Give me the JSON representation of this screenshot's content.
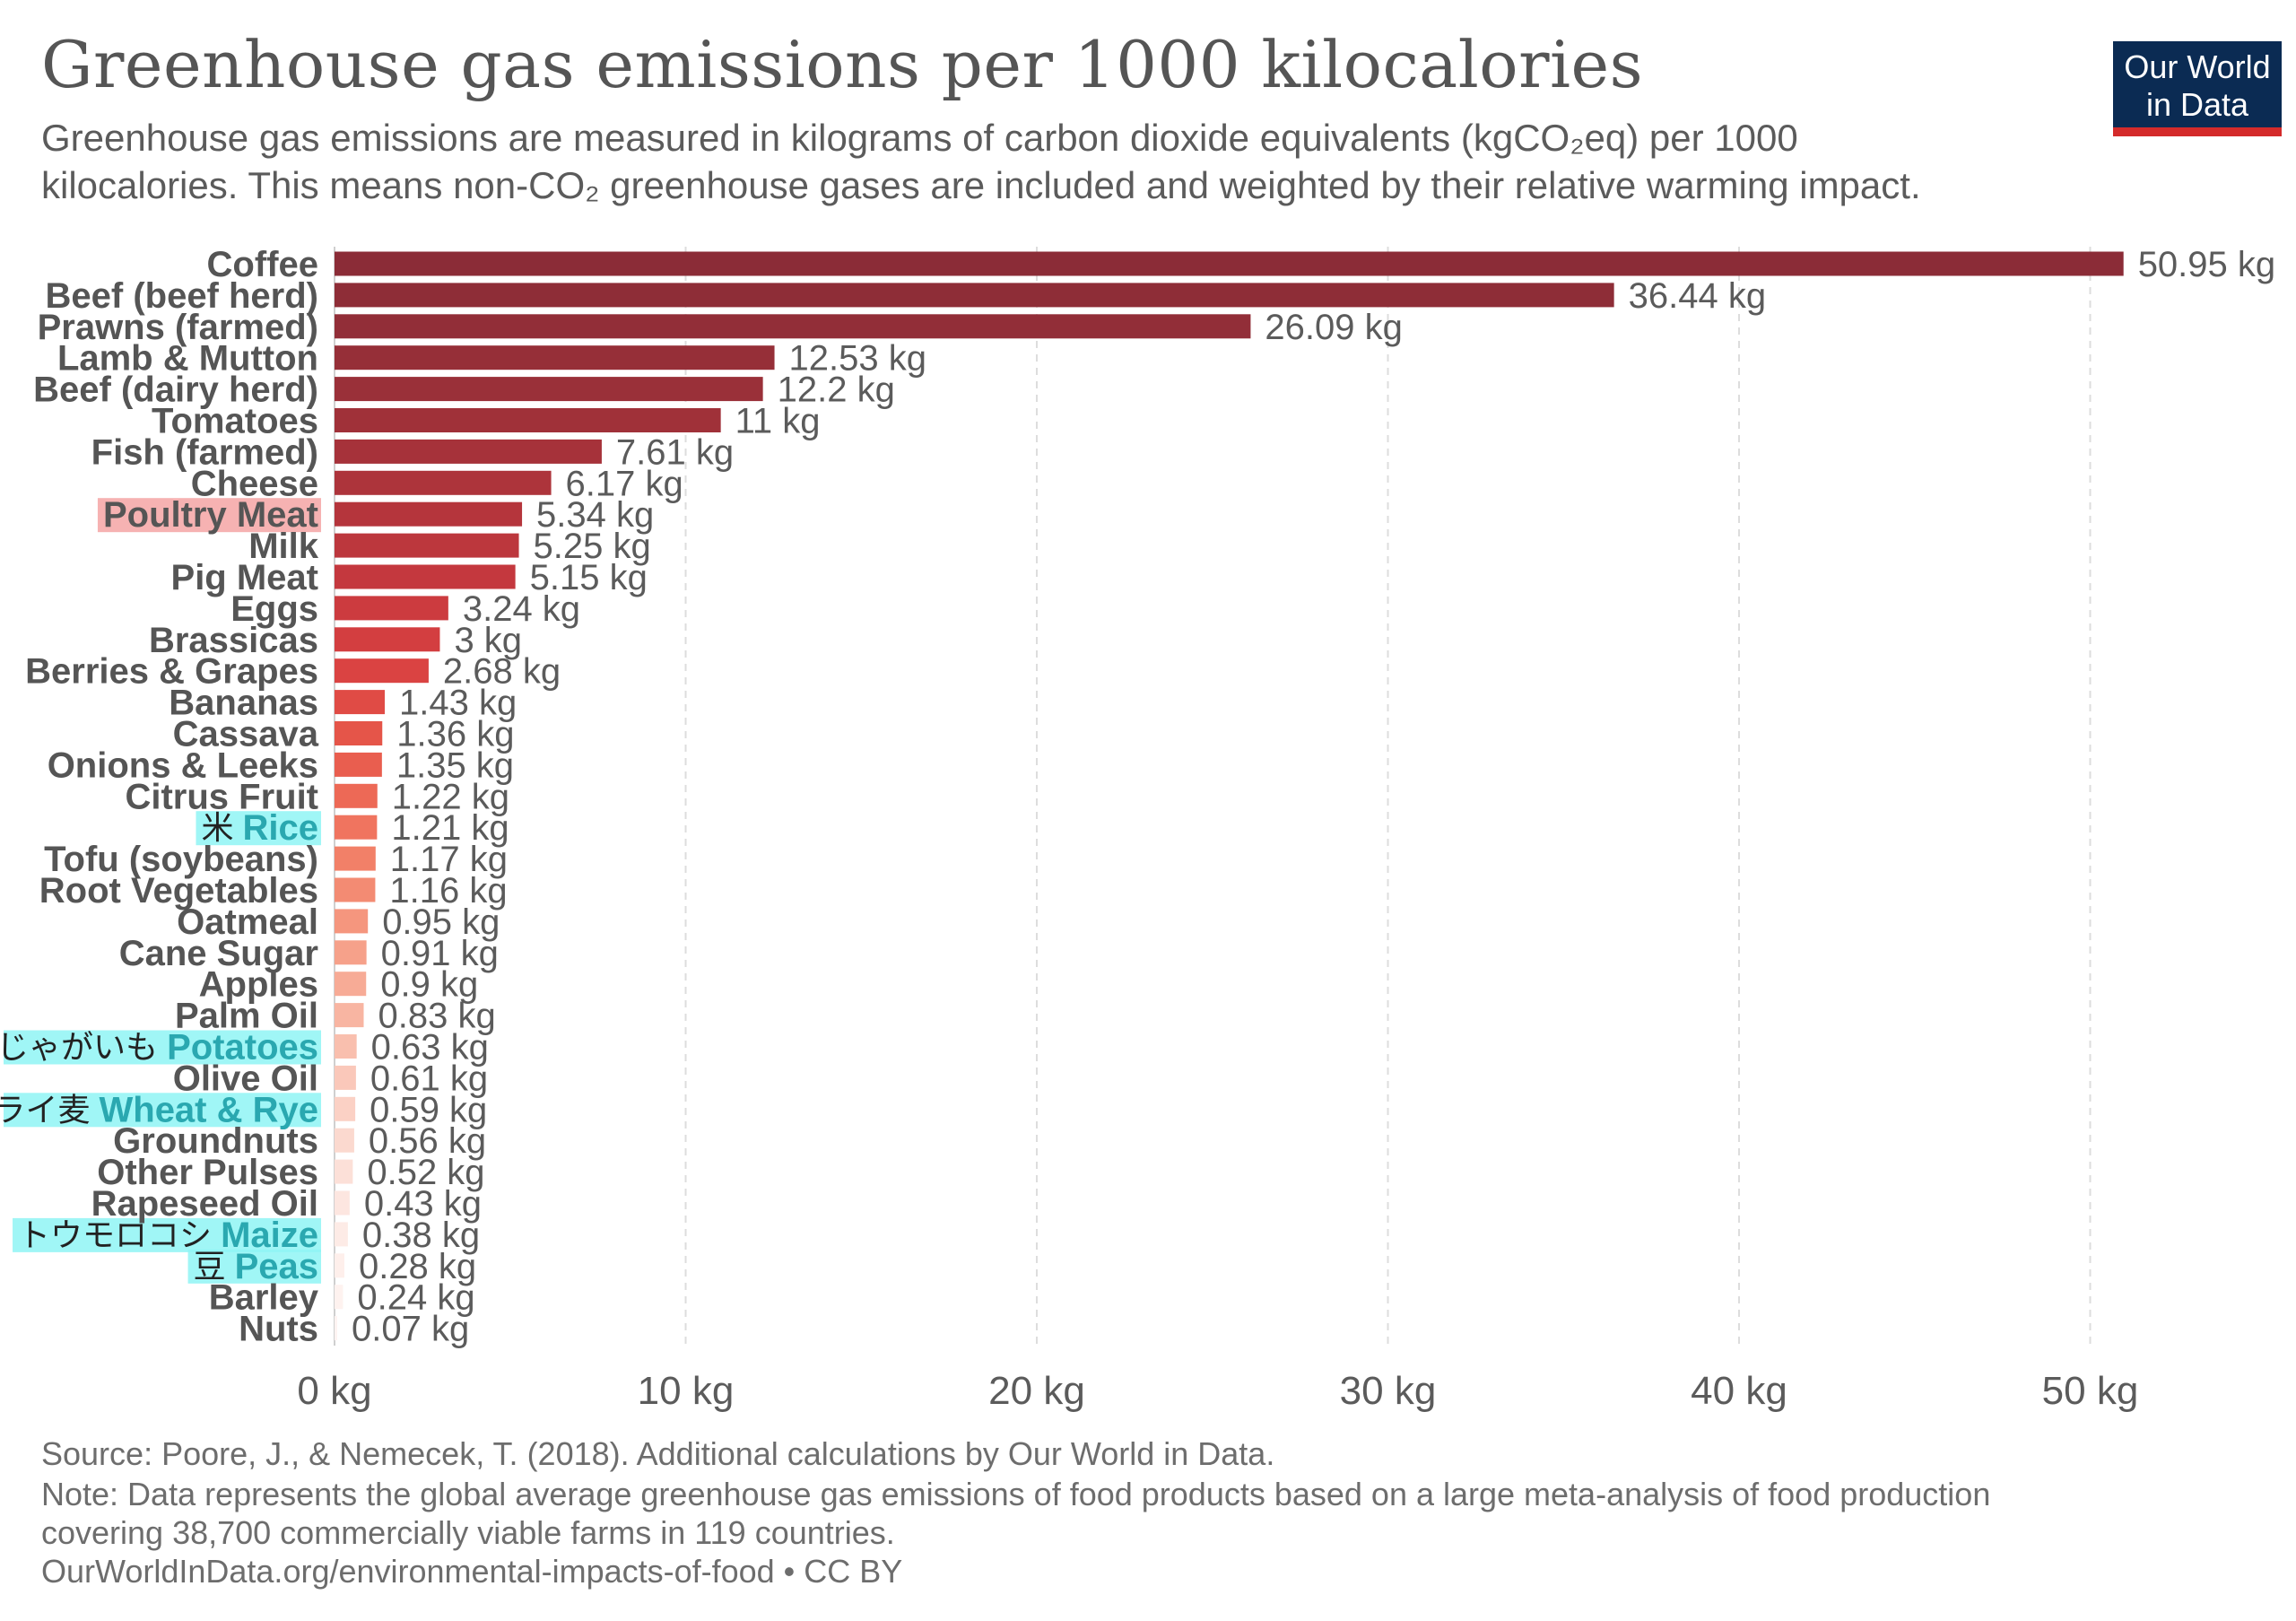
{
  "title": "Greenhouse gas emissions per 1000 kilocalories",
  "subtitle_line1": "Greenhouse gas emissions are measured in kilograms of carbon dioxide equivalents (kgCO₂eq) per 1000",
  "subtitle_line2": "kilocalories. This means non-CO₂ greenhouse gases are included and weighted by their relative warming impact.",
  "logo": {
    "line1": "Our World",
    "line2": "in Data",
    "bg_color": "#0b2b53",
    "accent_color": "#d42b2b"
  },
  "footer": {
    "source": "Source: Poore, J., & Nemecek, T. (2018). Additional calculations by Our World in Data.",
    "note_line1": "Note: Data represents the global average greenhouse gas emissions of food products based on a large meta-analysis of food production",
    "note_line2": "covering 38,700 commercially viable farms in 119 countries.",
    "url": "OurWorldInData.org/environmental-impacts-of-food • CC BY"
  },
  "highlight_colors": {
    "pink": "#f4a5a5",
    "cyan": "#8ff5f5"
  },
  "chart_data": {
    "type": "bar",
    "orientation": "horizontal",
    "unit": "kg",
    "xlim": [
      0,
      55
    ],
    "xticks": [
      0,
      10,
      20,
      30,
      40,
      50
    ],
    "xtick_labels": [
      "0 kg",
      "10 kg",
      "20 kg",
      "30 kg",
      "40 kg",
      "50 kg"
    ],
    "grid": "vertical dashed",
    "categories": [
      "Coffee",
      "Beef (beef herd)",
      "Prawns (farmed)",
      "Lamb & Mutton",
      "Beef (dairy herd)",
      "Tomatoes",
      "Fish (farmed)",
      "Cheese",
      "Poultry Meat",
      "Milk",
      "Pig Meat",
      "Eggs",
      "Brassicas",
      "Berries & Grapes",
      "Bananas",
      "Cassava",
      "Onions & Leeks",
      "Citrus Fruit",
      "Rice",
      "Tofu (soybeans)",
      "Root Vegetables",
      "Oatmeal",
      "Cane Sugar",
      "Apples",
      "Palm Oil",
      "Potatoes",
      "Olive Oil",
      "Wheat & Rye",
      "Groundnuts",
      "Other Pulses",
      "Rapeseed Oil",
      "Maize",
      "Peas",
      "Barley",
      "Nuts"
    ],
    "values": [
      50.95,
      36.44,
      26.09,
      12.53,
      12.2,
      11,
      7.61,
      6.17,
      5.34,
      5.25,
      5.15,
      3.24,
      3,
      2.68,
      1.43,
      1.36,
      1.35,
      1.22,
      1.21,
      1.17,
      1.16,
      0.95,
      0.91,
      0.9,
      0.83,
      0.63,
      0.61,
      0.59,
      0.56,
      0.52,
      0.43,
      0.38,
      0.28,
      0.24,
      0.07
    ],
    "value_labels": [
      "50.95 kg",
      "36.44 kg",
      "26.09 kg",
      "12.53 kg",
      "12.2 kg",
      "11 kg",
      "7.61 kg",
      "6.17 kg",
      "5.34 kg",
      "5.25 kg",
      "5.15 kg",
      "3.24 kg",
      "3 kg",
      "2.68 kg",
      "1.43 kg",
      "1.36 kg",
      "1.35 kg",
      "1.22 kg",
      "1.21 kg",
      "1.17 kg",
      "1.16 kg",
      "0.95 kg",
      "0.91 kg",
      "0.9 kg",
      "0.83 kg",
      "0.63 kg",
      "0.61 kg",
      "0.59 kg",
      "0.56 kg",
      "0.52 kg",
      "0.43 kg",
      "0.38 kg",
      "0.28 kg",
      "0.24 kg",
      "0.07 kg"
    ],
    "bar_colors": [
      "#8b2c37",
      "#8e2d37",
      "#922e38",
      "#962f38",
      "#9a3039",
      "#a03139",
      "#a6323a",
      "#ad343b",
      "#b5353c",
      "#bc373d",
      "#c4383e",
      "#cc3b3f",
      "#d33e40",
      "#da4342",
      "#e04b45",
      "#e55549",
      "#e95e4f",
      "#ed6956",
      "#f0745f",
      "#f28068",
      "#f38b73",
      "#f5967e",
      "#f6a18a",
      "#f7ab96",
      "#f8b5a2",
      "#f9bfae",
      "#fac8ba",
      "#fbd1c5",
      "#fbd9cf",
      "#fce0d8",
      "#fde6e0",
      "#fdebe6",
      "#feefeb",
      "#fef2ef",
      "#fef4f2"
    ],
    "label_highlights": [
      {
        "category": "Poultry Meat",
        "color": "pink",
        "annotation": ""
      },
      {
        "category": "Rice",
        "color": "cyan",
        "annotation": "米"
      },
      {
        "category": "Potatoes",
        "color": "cyan",
        "annotation": "じゃがいも"
      },
      {
        "category": "Wheat & Rye",
        "color": "cyan",
        "annotation": "小麦とライ麦"
      },
      {
        "category": "Maize",
        "color": "cyan",
        "annotation": "トウモロコシ"
      },
      {
        "category": "Peas",
        "color": "cyan",
        "annotation": "豆"
      }
    ]
  }
}
